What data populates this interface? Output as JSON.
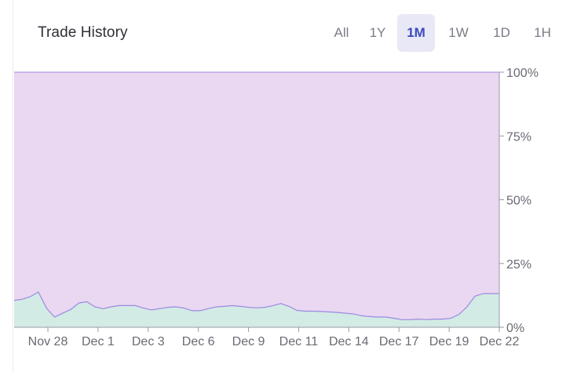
{
  "header": {
    "title": "Trade History",
    "ranges": [
      "All",
      "1Y",
      "1M",
      "1W",
      "1D",
      "1H"
    ],
    "selected": "1M"
  },
  "colors": {
    "upper_fill": "#ead7f1",
    "lower_fill": "#d3ebe5",
    "line": "#9a8be0",
    "active_tab_bg": "#e8e8f6",
    "active_tab_text": "#3b4db8"
  },
  "chart_data": {
    "type": "area",
    "xlabel": "",
    "ylabel": "",
    "x_ticks": [
      "Nov 28",
      "Dec 1",
      "Dec 3",
      "Dec 6",
      "Dec 9",
      "Dec 11",
      "Dec 14",
      "Dec 17",
      "Dec 19",
      "Dec 22"
    ],
    "y_ticks": [
      "100%",
      "75%",
      "50%",
      "25%",
      "0%"
    ],
    "ylim": [
      0,
      100
    ],
    "grid": false,
    "series": [
      {
        "values": [
          10.5,
          11,
          12,
          13.8,
          7.5,
          4,
          5.5,
          7,
          9.5,
          10,
          8,
          7.3,
          8,
          8.5,
          8.5,
          8.5,
          7.5,
          6.8,
          7.3,
          7.8,
          8,
          7.5,
          6.5,
          6.5,
          7.3,
          8,
          8.2,
          8.5,
          8.2,
          7.8,
          7.6,
          7.8,
          8.5,
          9.3,
          8.2,
          6.6,
          6.3,
          6.3,
          6.2,
          6,
          5.8,
          5.5,
          5.2,
          4.5,
          4.2,
          4,
          4,
          3.5,
          3,
          3,
          3.2,
          3,
          3.2,
          3.2,
          3.5,
          5,
          8,
          12.2,
          13.2,
          13.2,
          13.2
        ]
      }
    ]
  }
}
